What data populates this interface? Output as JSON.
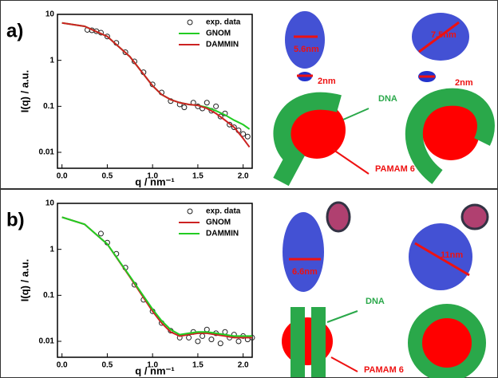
{
  "chart_data": [
    {
      "type": "line",
      "panel_label": "a)",
      "y_label": "I(q) / a.u.",
      "x_label": "q / nm⁻¹",
      "log_y": true,
      "xlim": [
        -0.05,
        2.1
      ],
      "ylim": [
        0.0045,
        10
      ],
      "xticks": [
        {
          "value": 0,
          "label": "0.0"
        },
        {
          "value": 0.5,
          "label": "0.5"
        },
        {
          "value": 1,
          "label": "1.0"
        },
        {
          "value": 1.5,
          "label": "1.5"
        },
        {
          "value": 2,
          "label": "2.0"
        }
      ],
      "yticks": [
        0.01,
        0.1,
        1,
        10
      ],
      "series": [
        {
          "name": "exp. data",
          "color": "#222222",
          "style": "markers",
          "x": [
            0.28,
            0.33,
            0.38,
            0.43,
            0.5,
            0.6,
            0.7,
            0.8,
            0.9,
            1.0,
            1.1,
            1.2,
            1.3,
            1.35,
            1.45,
            1.5,
            1.55,
            1.6,
            1.65,
            1.7,
            1.75,
            1.8,
            1.85,
            1.9,
            1.95,
            2.0,
            2.05
          ],
          "values": [
            4.6,
            4.5,
            4.3,
            4.0,
            3.3,
            2.4,
            1.5,
            0.95,
            0.55,
            0.3,
            0.2,
            0.13,
            0.11,
            0.095,
            0.12,
            0.1,
            0.09,
            0.12,
            0.08,
            0.1,
            0.06,
            0.07,
            0.04,
            0.035,
            0.03,
            0.025,
            0.022
          ]
        },
        {
          "name": "GNOM",
          "color": "#22cc22",
          "style": "line",
          "x": [
            0,
            0.25,
            0.5,
            0.75,
            0.9,
            1.0,
            1.1,
            1.2,
            1.3,
            1.4,
            1.5,
            1.6,
            1.7,
            1.8,
            1.9,
            2.0,
            2.07
          ],
          "values": [
            6.5,
            5.5,
            3.3,
            1.2,
            0.5,
            0.28,
            0.18,
            0.14,
            0.12,
            0.11,
            0.105,
            0.095,
            0.08,
            0.065,
            0.05,
            0.04,
            0.032
          ]
        },
        {
          "name": "DAMMIN",
          "color": "#cc2222",
          "style": "line",
          "x": [
            0,
            0.25,
            0.5,
            0.75,
            0.9,
            1.0,
            1.1,
            1.2,
            1.3,
            1.4,
            1.5,
            1.6,
            1.7,
            1.8,
            1.9,
            2.0,
            2.07
          ],
          "values": [
            6.5,
            5.5,
            3.3,
            1.2,
            0.5,
            0.28,
            0.18,
            0.14,
            0.12,
            0.11,
            0.105,
            0.09,
            0.07,
            0.05,
            0.035,
            0.02,
            0.013
          ]
        }
      ],
      "annotations": [
        "5.6nm",
        "2nm",
        "7.5nm",
        "2nm",
        "DNA",
        "PAMAM 6"
      ]
    },
    {
      "type": "line",
      "panel_label": "b)",
      "y_label": "I(q) / a.u.",
      "x_label": "q / nm⁻¹",
      "log_y": true,
      "xlim": [
        -0.05,
        2.1
      ],
      "ylim": [
        0.0045,
        10
      ],
      "xticks": [
        {
          "value": 0,
          "label": "0.0"
        },
        {
          "value": 0.5,
          "label": "0.5"
        },
        {
          "value": 1,
          "label": "1.0"
        },
        {
          "value": 1.5,
          "label": "1.5"
        },
        {
          "value": 2,
          "label": "2.0"
        }
      ],
      "yticks": [
        0.01,
        0.1,
        1,
        10
      ],
      "series": [
        {
          "name": "exp. data",
          "color": "#222222",
          "style": "markers",
          "x": [
            0.43,
            0.5,
            0.6,
            0.7,
            0.8,
            0.9,
            1.0,
            1.1,
            1.2,
            1.3,
            1.4,
            1.45,
            1.5,
            1.55,
            1.6,
            1.65,
            1.7,
            1.75,
            1.8,
            1.85,
            1.9,
            1.95,
            2.0,
            2.05,
            2.1
          ],
          "values": [
            2.2,
            1.4,
            0.8,
            0.4,
            0.17,
            0.08,
            0.045,
            0.025,
            0.017,
            0.012,
            0.012,
            0.016,
            0.01,
            0.013,
            0.018,
            0.011,
            0.015,
            0.009,
            0.016,
            0.012,
            0.014,
            0.01,
            0.013,
            0.011,
            0.012
          ]
        },
        {
          "name": "GNOM",
          "color": "#cc2222",
          "style": "line",
          "x": [
            0,
            0.25,
            0.5,
            0.75,
            1.0,
            1.1,
            1.2,
            1.3,
            1.4,
            1.5,
            1.6,
            1.7,
            1.8,
            1.9,
            2.0,
            2.1
          ],
          "values": [
            5,
            3.5,
            1.3,
            0.25,
            0.045,
            0.025,
            0.016,
            0.013,
            0.014,
            0.015,
            0.015,
            0.014,
            0.013,
            0.012,
            0.012,
            0.012
          ]
        },
        {
          "name": "DAMMIN",
          "color": "#22cc22",
          "style": "line",
          "x": [
            0,
            0.25,
            0.5,
            0.75,
            1.0,
            1.1,
            1.2,
            1.3,
            1.4,
            1.5,
            1.6,
            1.7,
            1.8,
            1.9,
            2.0,
            2.1
          ],
          "values": [
            5,
            3.5,
            1.3,
            0.26,
            0.05,
            0.028,
            0.018,
            0.014,
            0.015,
            0.016,
            0.016,
            0.015,
            0.014,
            0.013,
            0.013,
            0.013
          ]
        }
      ],
      "annotations": [
        "6.6nm",
        "11nm",
        "DNA",
        "PAMAM 6"
      ]
    }
  ]
}
